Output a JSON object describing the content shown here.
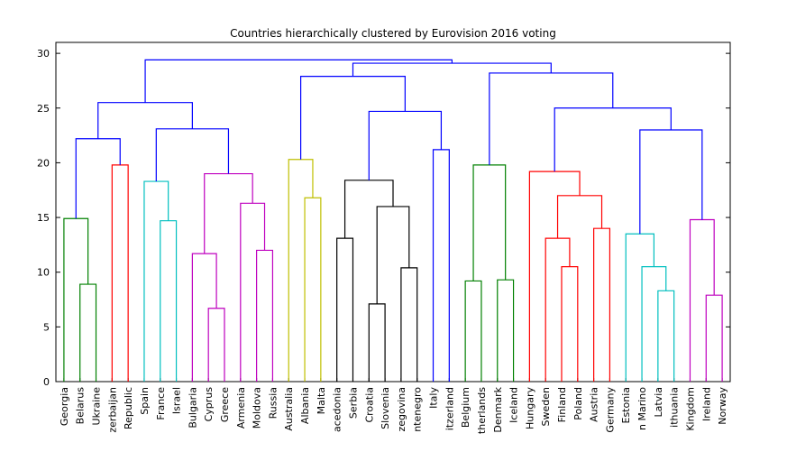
{
  "chart_data": {
    "type": "dendrogram",
    "title": "Countries hierarchically clustered by Eurovision 2016 voting",
    "leaves": [
      "Georgia",
      "Belarus",
      "Ukraine",
      "zerbaijan",
      "Republic",
      "Spain",
      "France",
      "Israel",
      "Bulgaria",
      "Cyprus",
      "Greece",
      "Armenia",
      "Moldova",
      "Russia",
      "Australia",
      "Albania",
      "Malta",
      "acedonia",
      "Serbia",
      "Croatia",
      "Slovenia",
      "zegovina",
      "ntenegro",
      "Italy",
      "itzerland",
      "Belgium",
      "therlands",
      "Denmark",
      "Iceland",
      "Hungary",
      "Sweden",
      "Finland",
      "Poland",
      "Austria",
      "Germany",
      "Estonia",
      "n Marino",
      "Latvia",
      "ithuania",
      "Kingdom",
      "Ireland",
      "Norway"
    ],
    "links": [
      {
        "left": 1,
        "right": 2,
        "height": 8.9,
        "color": "#008000"
      },
      {
        "left": 0,
        "right": 42,
        "height": 14.9,
        "color": "#008000"
      },
      {
        "left": 3,
        "right": 4,
        "height": 19.8,
        "color": "#ff0000"
      },
      {
        "left": 43,
        "right": 44,
        "height": 22.2,
        "color": "#0000ff"
      },
      {
        "left": 6,
        "right": 7,
        "height": 14.7,
        "color": "#00bfbf"
      },
      {
        "left": 5,
        "right": 46,
        "height": 18.3,
        "color": "#00bfbf"
      },
      {
        "left": 9,
        "right": 10,
        "height": 6.7,
        "color": "#bf00bf"
      },
      {
        "left": 8,
        "right": 48,
        "height": 11.7,
        "color": "#bf00bf"
      },
      {
        "left": 12,
        "right": 13,
        "height": 12.0,
        "color": "#bf00bf"
      },
      {
        "left": 11,
        "right": 50,
        "height": 16.3,
        "color": "#bf00bf"
      },
      {
        "left": 49,
        "right": 51,
        "height": 19.0,
        "color": "#bf00bf"
      },
      {
        "left": 47,
        "right": 52,
        "height": 23.1,
        "color": "#0000ff"
      },
      {
        "left": 45,
        "right": 53,
        "height": 25.5,
        "color": "#0000ff"
      },
      {
        "left": 15,
        "right": 16,
        "height": 16.8,
        "color": "#bfbf00"
      },
      {
        "left": 14,
        "right": 55,
        "height": 20.3,
        "color": "#bfbf00"
      },
      {
        "left": 17,
        "right": 18,
        "height": 13.1,
        "color": "#000000"
      },
      {
        "left": 19,
        "right": 20,
        "height": 7.1,
        "color": "#000000"
      },
      {
        "left": 21,
        "right": 22,
        "height": 10.4,
        "color": "#000000"
      },
      {
        "left": 58,
        "right": 59,
        "height": 16.0,
        "color": "#000000"
      },
      {
        "left": 57,
        "right": 60,
        "height": 18.4,
        "color": "#000000"
      },
      {
        "left": 23,
        "right": 24,
        "height": 21.2,
        "color": "#0000ff"
      },
      {
        "left": 61,
        "right": 62,
        "height": 24.7,
        "color": "#0000ff"
      },
      {
        "left": 56,
        "right": 63,
        "height": 27.9,
        "color": "#0000ff"
      },
      {
        "left": 25,
        "right": 26,
        "height": 9.2,
        "color": "#008000"
      },
      {
        "left": 27,
        "right": 28,
        "height": 9.3,
        "color": "#008000"
      },
      {
        "left": 65,
        "right": 66,
        "height": 19.8,
        "color": "#008000"
      },
      {
        "left": 31,
        "right": 32,
        "height": 10.5,
        "color": "#ff0000"
      },
      {
        "left": 30,
        "right": 68,
        "height": 13.1,
        "color": "#ff0000"
      },
      {
        "left": 33,
        "right": 34,
        "height": 14.0,
        "color": "#ff0000"
      },
      {
        "left": 69,
        "right": 70,
        "height": 17.0,
        "color": "#ff0000"
      },
      {
        "left": 29,
        "right": 71,
        "height": 19.2,
        "color": "#ff0000"
      },
      {
        "left": 37,
        "right": 38,
        "height": 8.3,
        "color": "#00bfbf"
      },
      {
        "left": 36,
        "right": 73,
        "height": 10.5,
        "color": "#00bfbf"
      },
      {
        "left": 35,
        "right": 74,
        "height": 13.5,
        "color": "#00bfbf"
      },
      {
        "left": 40,
        "right": 41,
        "height": 7.9,
        "color": "#bf00bf"
      },
      {
        "left": 39,
        "right": 76,
        "height": 14.8,
        "color": "#bf00bf"
      },
      {
        "left": 75,
        "right": 77,
        "height": 23.0,
        "color": "#0000ff"
      },
      {
        "left": 72,
        "right": 78,
        "height": 25.0,
        "color": "#0000ff"
      },
      {
        "left": 67,
        "right": 79,
        "height": 28.2,
        "color": "#0000ff"
      },
      {
        "left": 64,
        "right": 80,
        "height": 29.1,
        "color": "#0000ff"
      },
      {
        "left": 54,
        "right": 81,
        "height": 29.4,
        "color": "#0000ff"
      }
    ],
    "ylim": [
      0,
      31
    ],
    "yticks": [
      0,
      5,
      10,
      15,
      20,
      25,
      30
    ]
  }
}
